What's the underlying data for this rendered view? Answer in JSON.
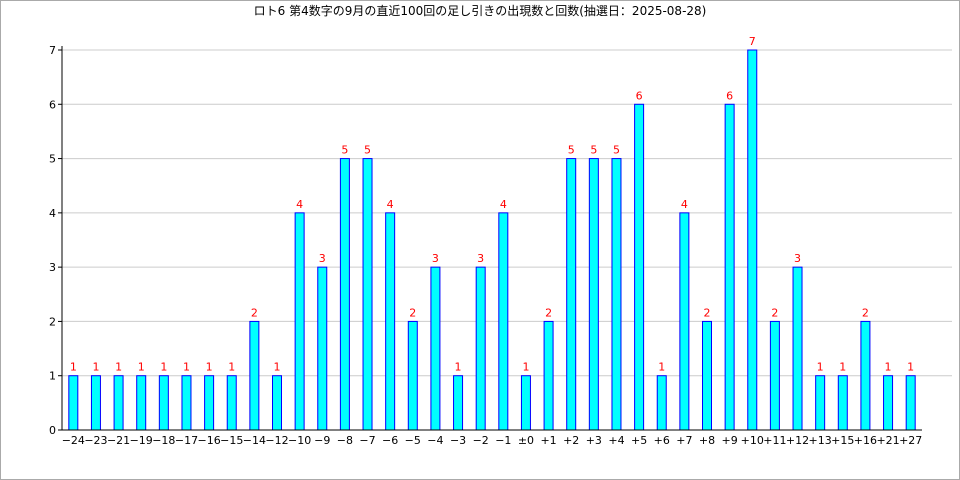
{
  "colors": {
    "bar_fill": "#00ffff",
    "bar_stroke": "#0000ff",
    "value_label": "#ff0000",
    "grid": "#cccccc",
    "axis": "#000000",
    "frame": "#aaaaaa"
  },
  "chart_data": {
    "type": "bar",
    "title": "ロト6 第4数字の9月の直近100回の足し引きの出現数と回数(抽選日：2025-08-28)",
    "xlabel": "",
    "ylabel": "",
    "ylim": [
      0,
      7
    ],
    "yticks": [
      0,
      1,
      2,
      3,
      4,
      5,
      6,
      7
    ],
    "grid": true,
    "data_labels": true,
    "categories": [
      "−24",
      "−23",
      "−21",
      "−19",
      "−18",
      "−17",
      "−16",
      "−15",
      "−14",
      "−12",
      "−10",
      "−9",
      "−8",
      "−7",
      "−6",
      "−5",
      "−4",
      "−3",
      "−2",
      "−1",
      "±0",
      "+1",
      "+2",
      "+3",
      "+4",
      "+5",
      "+6",
      "+7",
      "+8",
      "+9",
      "+10",
      "+11",
      "+12",
      "+13",
      "+15",
      "+16",
      "+21",
      "+27"
    ],
    "values": [
      1,
      1,
      1,
      1,
      1,
      1,
      1,
      1,
      2,
      1,
      4,
      3,
      5,
      5,
      4,
      2,
      3,
      1,
      3,
      4,
      1,
      2,
      5,
      5,
      5,
      6,
      1,
      4,
      2,
      6,
      7,
      2,
      3,
      1,
      1,
      2,
      1,
      1
    ]
  }
}
